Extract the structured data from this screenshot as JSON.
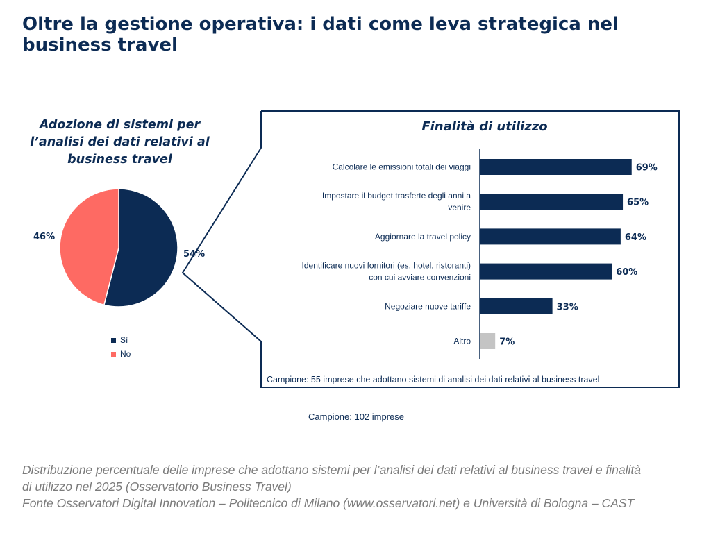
{
  "title": "Oltre la gestione operativa: i dati come leva strategica nel business travel",
  "chart_data": [
    {
      "type": "pie",
      "title": "Adozione di sistemi per l’analisi dei dati relativi al business travel",
      "categories": [
        "Sì",
        "No"
      ],
      "values": [
        54,
        46
      ],
      "value_labels": [
        "54%",
        "46%"
      ],
      "colors": [
        "#0c2b54",
        "#fe6a63"
      ],
      "legend_position": "bottom",
      "note": "Campione: 102 imprese"
    },
    {
      "type": "bar",
      "orientation": "horizontal",
      "title": "Finalità di utilizzo",
      "categories": [
        "Calcolare le emissioni totali dei viaggi",
        "Impostare il budget trasferte degli anni a venire",
        "Aggiornare la travel policy",
        "Identificare nuovi fornitori (es. hotel, ristoranti) con cui avviare convenzioni",
        "Negoziare nuove tariffe",
        "Altro"
      ],
      "category_lines": [
        [
          "Calcolare le emissioni totali dei viaggi"
        ],
        [
          "Impostare il budget trasferte degli anni a",
          "venire"
        ],
        [
          "Aggiornare la travel policy"
        ],
        [
          "Identificare nuovi fornitori (es. hotel, ristoranti)",
          "con cui avviare convenzioni"
        ],
        [
          "Negoziare nuove tariffe"
        ],
        [
          "Altro"
        ]
      ],
      "values": [
        69,
        65,
        64,
        60,
        33,
        7
      ],
      "value_labels": [
        "69%",
        "65%",
        "64%",
        "60%",
        "33%",
        "7%"
      ],
      "colors": [
        "#0c2b54",
        "#0c2b54",
        "#0c2b54",
        "#0c2b54",
        "#0c2b54",
        "#c4c4c4"
      ],
      "note": "Campione: 55 imprese che adottano sistemi di analisi dei dati relativi al business travel"
    }
  ],
  "caption": [
    "Distribuzione percentuale delle imprese che adottano sistemi per l’analisi dei dati relativi al business travel e finalità",
    "di utilizzo nel 2025 (Osservatorio Business Travel)",
    "Fonte Osservatori Digital Innovation – Politecnico di Milano (www.osservatori.net) e Università di Bologna – CAST"
  ]
}
